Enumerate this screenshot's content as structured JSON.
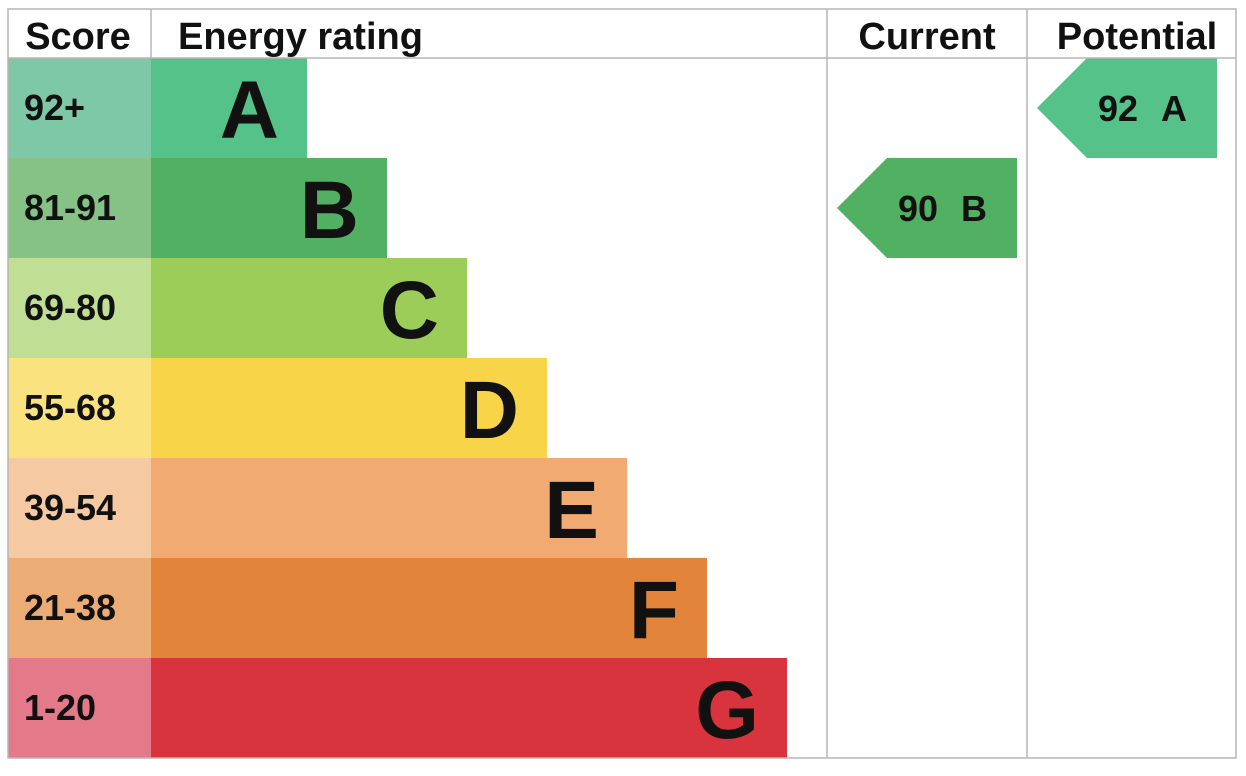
{
  "chart_data": {
    "type": "table",
    "headers": {
      "score": "Score",
      "rating": "Energy rating",
      "current": "Current",
      "potential": "Potential"
    },
    "bands": [
      {
        "score": "92+",
        "letter": "A",
        "color": "#55c28a",
        "score_bg": "#7ec8a8"
      },
      {
        "score": "81-91",
        "letter": "B",
        "color": "#52b063",
        "score_bg": "#86c285"
      },
      {
        "score": "69-80",
        "letter": "C",
        "color": "#9ccd58",
        "score_bg": "#c0df94"
      },
      {
        "score": "55-68",
        "letter": "D",
        "color": "#f8d449",
        "score_bg": "#fae37f"
      },
      {
        "score": "39-54",
        "letter": "E",
        "color": "#f1ab72",
        "score_bg": "#f5caa3"
      },
      {
        "score": "21-38",
        "letter": "F",
        "color": "#e2853a",
        "score_bg": "#ebac76"
      },
      {
        "score": "1-20",
        "letter": "G",
        "color": "#d8343e",
        "score_bg": "#e47a89"
      }
    ],
    "current": {
      "value": "90",
      "letter": "B",
      "color": "#52b063"
    },
    "potential": {
      "value": "92",
      "letter": "A",
      "color": "#55c28a"
    }
  }
}
